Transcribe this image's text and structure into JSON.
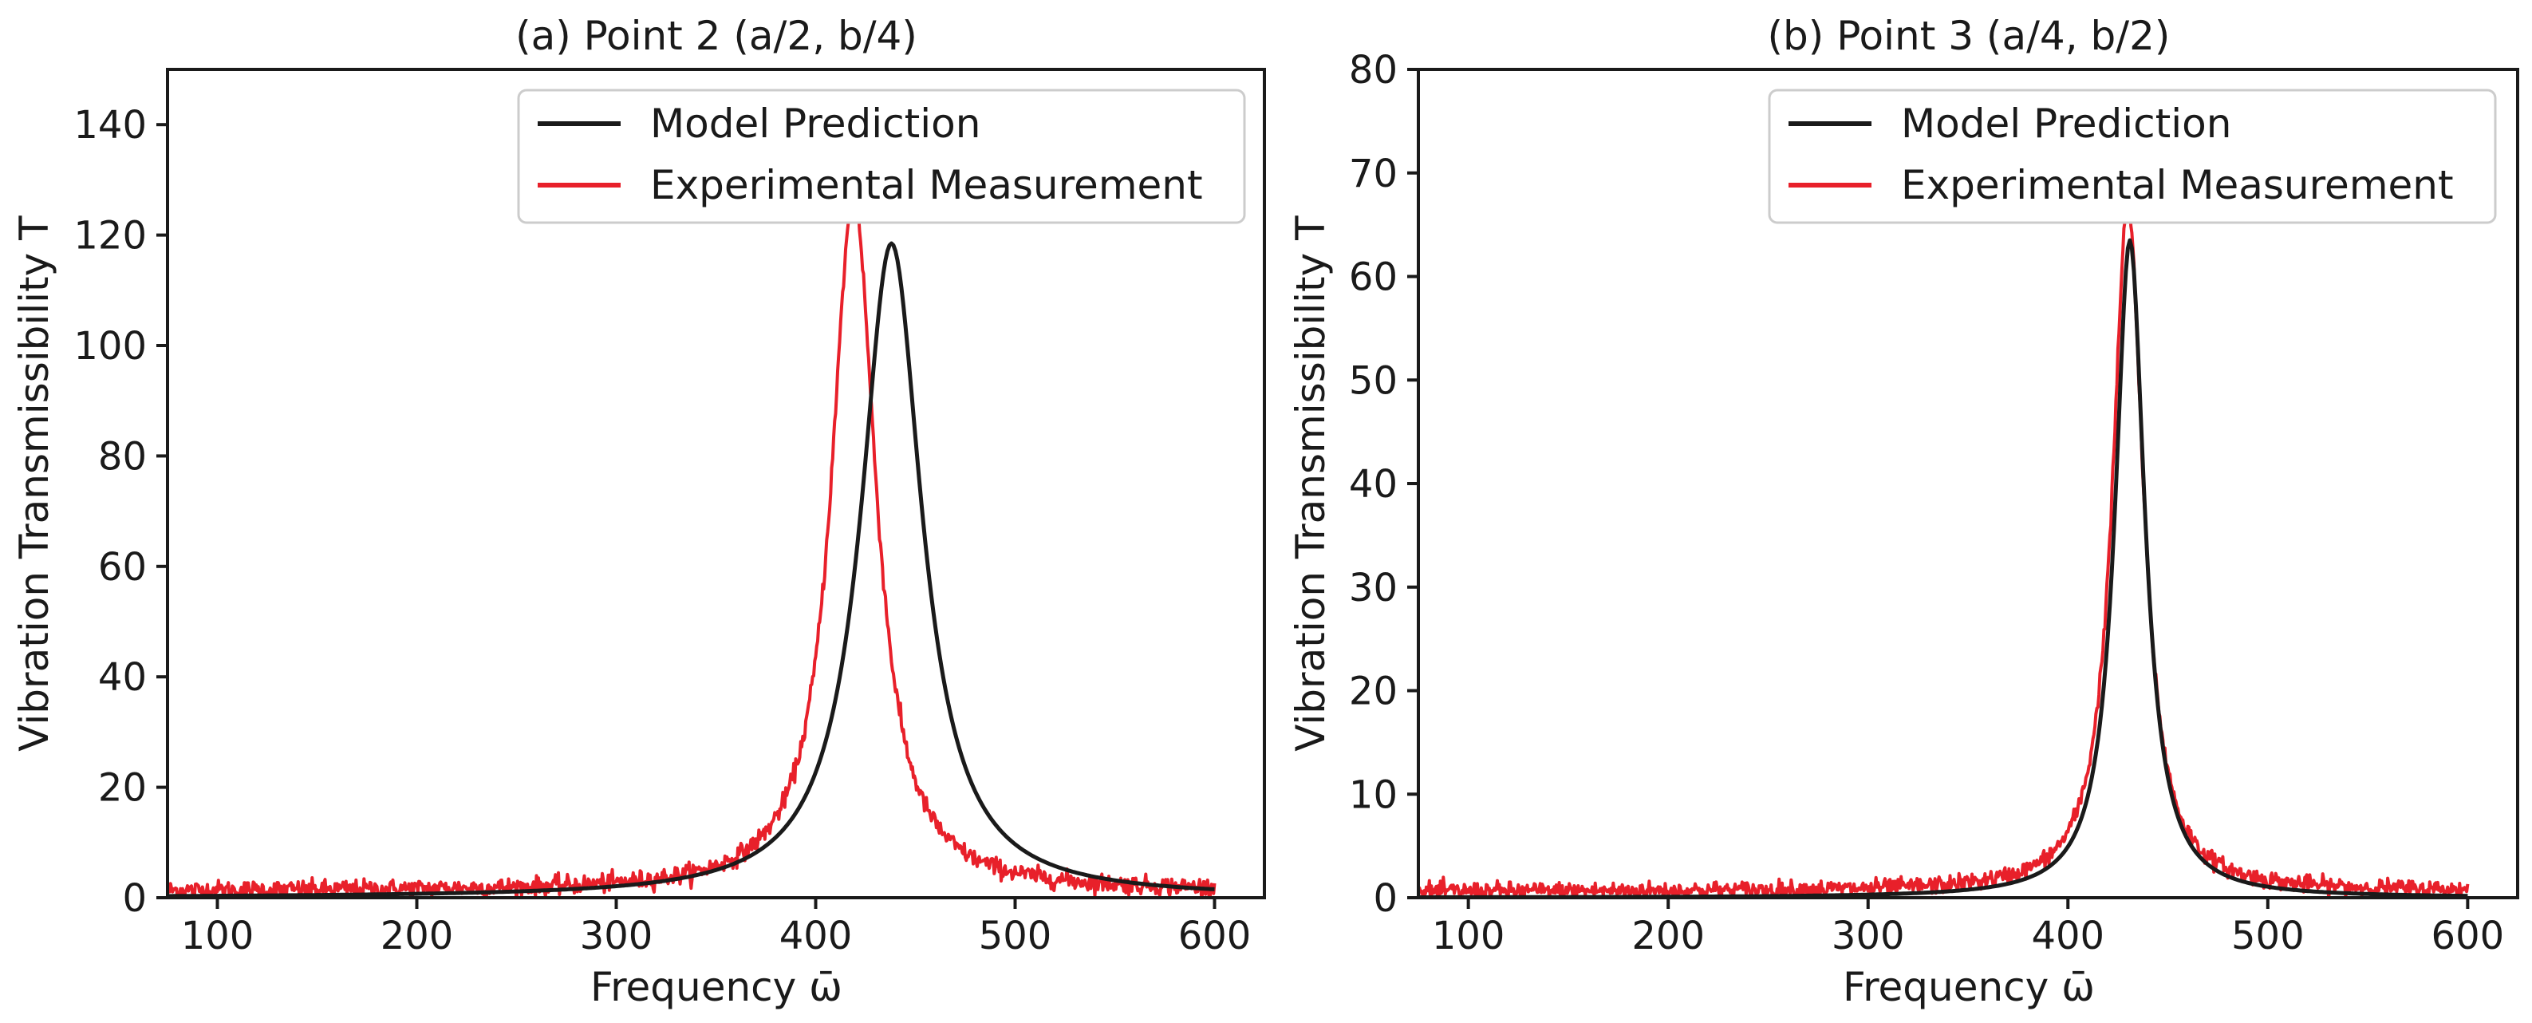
{
  "chart_data": [
    {
      "type": "line",
      "title": "(a) Point 2 (a/2, b/4)",
      "xlabel": "Frequency ω̄",
      "ylabel": "Vibration Transmissibility  T",
      "xlim": [
        75,
        625
      ],
      "ylim": [
        0,
        150
      ],
      "xticks": [
        100,
        200,
        300,
        400,
        500,
        600
      ],
      "yticks": [
        0,
        20,
        40,
        60,
        80,
        100,
        120,
        140
      ],
      "legend_position": "top-right",
      "series": [
        {
          "name": "Model Prediction",
          "color": "#1a1a1a",
          "kind": "lorentzian",
          "x_range": [
            75,
            600
          ],
          "peak_x": 438,
          "peak_y": 118.5,
          "half_width": 18.5,
          "noise": 0
        },
        {
          "name": "Experimental Measurement",
          "color": "#e8202a",
          "kind": "lorentzian",
          "x_range": [
            75,
            600
          ],
          "peak_x": 419,
          "peak_y": 126,
          "half_width": 13.5,
          "baseline": 1.2,
          "noise": 1.4
        }
      ]
    },
    {
      "type": "line",
      "title": "(b) Point 3 (a/4, b/2)",
      "xlabel": "Frequency ω̄",
      "ylabel": "Vibration Transmissibility  T",
      "xlim": [
        75,
        625
      ],
      "ylim": [
        0,
        80
      ],
      "xticks": [
        100,
        200,
        300,
        400,
        500,
        600
      ],
      "yticks": [
        0,
        10,
        20,
        30,
        40,
        50,
        60,
        70,
        80
      ],
      "legend_position": "top-right",
      "series": [
        {
          "name": "Model Prediction",
          "color": "#1a1a1a",
          "kind": "lorentzian",
          "x_range": [
            75,
            600
          ],
          "peak_x": 431,
          "peak_y": 63.5,
          "half_width": 9,
          "noise": 0
        },
        {
          "name": "Experimental Measurement",
          "color": "#e8202a",
          "kind": "lorentzian",
          "x_range": [
            75,
            600
          ],
          "peak_x": 430,
          "peak_y": 66.5,
          "half_width": 9.3,
          "baseline": 0.6,
          "noise": 0.7
        }
      ]
    }
  ]
}
